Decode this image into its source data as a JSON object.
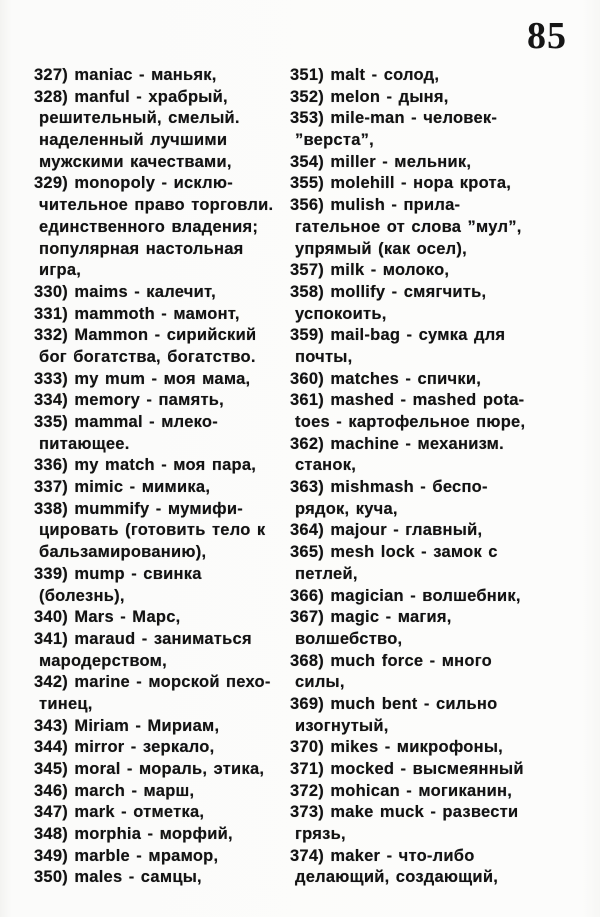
{
  "page": {
    "number": "85"
  },
  "columns": [
    {
      "entries": [
        {
          "lines": [
            "327) maniac - маньяк,"
          ]
        },
        {
          "lines": [
            "328) manful - храбрый,",
            "решительный, смелый.",
            "наделенный лучшими",
            "мужскими качествами,"
          ]
        },
        {
          "lines": [
            "329) monopoly - исклю-",
            "чительное право торговли.",
            "единственного владения;",
            "популярная настольная",
            "игра,"
          ]
        },
        {
          "lines": [
            "330) maims - калечит,"
          ]
        },
        {
          "lines": [
            "331) mammoth - мамонт,"
          ]
        },
        {
          "lines": [
            "332) Mammon - сирийский",
            "бог богатства, богатство."
          ]
        },
        {
          "lines": [
            "333) my mum - моя мама,"
          ]
        },
        {
          "lines": [
            "334) memory - память,"
          ]
        },
        {
          "lines": [
            "335) mammal - млеко-",
            "питающее."
          ]
        },
        {
          "lines": [
            "336) my match - моя пара,"
          ]
        },
        {
          "lines": [
            "337) mimic - мимика,"
          ]
        },
        {
          "lines": [
            "338) mummify - мумифи-",
            "цировать (готовить тело к",
            "бальзамированию),"
          ]
        },
        {
          "lines": [
            "339) mump - свинка",
            "(болезнь),"
          ]
        },
        {
          "lines": [
            "340) Mars - Марс,"
          ]
        },
        {
          "lines": [
            "341) maraud - заниматься",
            "мародерством,"
          ]
        },
        {
          "lines": [
            "342) marine - морской пехо-",
            "тинец,"
          ]
        },
        {
          "lines": [
            "343) Miriam - Мириам,"
          ]
        },
        {
          "lines": [
            "344) mirror - зеркало,"
          ]
        },
        {
          "lines": [
            "345) moral - мораль, этика,"
          ]
        },
        {
          "lines": [
            "346) march - марш,"
          ]
        },
        {
          "lines": [
            "347) mark - отметка,"
          ]
        },
        {
          "lines": [
            "348) morphia - морфий,"
          ]
        },
        {
          "lines": [
            "349) marble - мрамор,"
          ]
        },
        {
          "lines": [
            "350) males - самцы,"
          ]
        }
      ]
    },
    {
      "entries": [
        {
          "lines": [
            "351) malt - солод,"
          ]
        },
        {
          "lines": [
            "352) melon - дыня,"
          ]
        },
        {
          "lines": [
            "353) mile-man - человек-",
            "”верста”,"
          ]
        },
        {
          "lines": [
            "354) miller - мельник,"
          ]
        },
        {
          "lines": [
            "355) molehill - нора крота,"
          ]
        },
        {
          "lines": [
            "356) mulish - прила-",
            "гательное от слова ”мул”,",
            "упрямый (как осел),"
          ]
        },
        {
          "lines": [
            "357) milk - молоко,"
          ]
        },
        {
          "lines": [
            "358) mollify - смягчить,",
            "успокоить,"
          ]
        },
        {
          "lines": [
            "359) mail-bag - сумка для",
            "почты,"
          ]
        },
        {
          "lines": [
            "360) matches - спички,"
          ]
        },
        {
          "lines": [
            "361) mashed - mashed pota-",
            "toes - картофельное пюре,"
          ]
        },
        {
          "lines": [
            "362) machine - механизм.",
            "станок,"
          ]
        },
        {
          "lines": [
            "363) mishmash - беспо-",
            "рядок, куча,"
          ]
        },
        {
          "lines": [
            "364) majour - главный,"
          ]
        },
        {
          "lines": [
            "365) mesh lock - замок с",
            "петлей,"
          ]
        },
        {
          "lines": [
            "366) magician - волшебник,"
          ]
        },
        {
          "lines": [
            "367) magic - магия,",
            "волшебство,"
          ]
        },
        {
          "lines": [
            "368) much force - много",
            "силы,"
          ]
        },
        {
          "lines": [
            "369) much bent - сильно",
            "изогнутый,"
          ]
        },
        {
          "lines": [
            "370) mikes - микрофоны,"
          ]
        },
        {
          "lines": [
            "371) mocked - высмеянный"
          ]
        },
        {
          "lines": [
            "372) mohican - могиканин,"
          ]
        },
        {
          "lines": [
            "373) make muck - развести",
            "грязь,"
          ]
        },
        {
          "lines": [
            "374) maker - что-либо",
            "делающий, создающий,"
          ]
        }
      ]
    }
  ]
}
